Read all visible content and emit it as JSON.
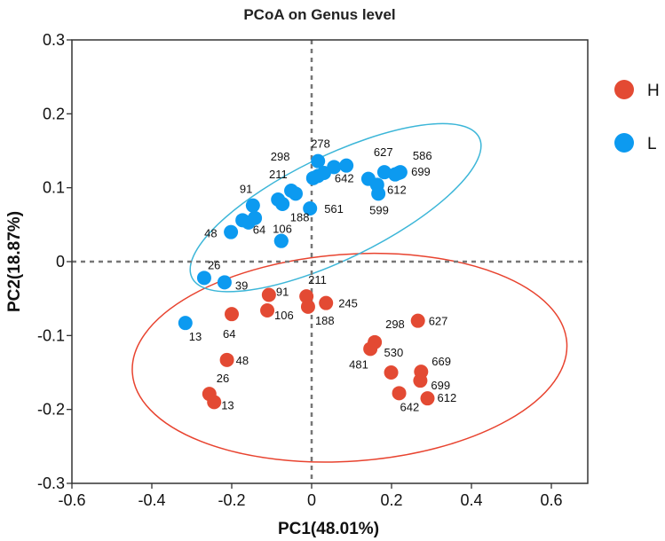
{
  "chart_data": {
    "type": "scatter",
    "title": "PCoA on Genus level",
    "xlabel": "PC1(48.01%)",
    "ylabel": "PC2(18.87%)",
    "xlim": [
      -0.6,
      0.69
    ],
    "ylim": [
      -0.3,
      0.3
    ],
    "xticks": [
      -0.6,
      -0.4,
      -0.2,
      0,
      0.2,
      0.4,
      0.6
    ],
    "xtick_labels": [
      "-0.6",
      "-0.4",
      "-0.2",
      "0",
      "0.2",
      "0.4",
      "0.6"
    ],
    "yticks": [
      0.3,
      0.2,
      0.1,
      0,
      -0.1,
      -0.2,
      -0.3
    ],
    "ytick_labels": [
      "0.3",
      "0.2",
      "0.1",
      "0",
      "-0.1",
      "-0.2",
      "-0.3"
    ],
    "reference_lines": {
      "x": 0,
      "y": 0,
      "style": "dashed"
    },
    "legend": {
      "placement": "right",
      "entries": [
        {
          "name": "H",
          "color": "#e34a33"
        },
        {
          "name": "L",
          "color": "#0c9af0"
        }
      ]
    },
    "series": [
      {
        "name": "H",
        "color": "#e34a33",
        "ellipse": {
          "cx": 0.095,
          "cy": -0.13,
          "rx": 0.545,
          "ry": 0.14,
          "angle_deg": -4,
          "stroke": "#e8432f"
        },
        "points": [
          {
            "label": "91",
            "x": -0.107,
            "y": -0.045,
            "lx": 8,
            "ly": 1
          },
          {
            "label": "106",
            "x": -0.111,
            "y": -0.066,
            "lx": 8,
            "ly": 10
          },
          {
            "label": "64",
            "x": -0.2,
            "y": -0.071,
            "lx": -10,
            "ly": 27
          },
          {
            "label": "211",
            "x": -0.013,
            "y": -0.047,
            "lx": 2,
            "ly": -14
          },
          {
            "label": "188",
            "x": -0.009,
            "y": -0.061,
            "lx": 8,
            "ly": 20
          },
          {
            "label": "245",
            "x": 0.036,
            "y": -0.056,
            "lx": 14,
            "ly": 5
          },
          {
            "label": "48",
            "x": -0.212,
            "y": -0.133,
            "lx": 10,
            "ly": 5
          },
          {
            "label": "26",
            "x": -0.256,
            "y": -0.179,
            "lx": 8,
            "ly": -13
          },
          {
            "label": "13",
            "x": -0.244,
            "y": -0.19,
            "lx": 8,
            "ly": 8
          },
          {
            "label": "627",
            "x": 0.266,
            "y": -0.08,
            "lx": 12,
            "ly": 5
          },
          {
            "label": "298",
            "x": 0.158,
            "y": -0.109,
            "lx": 12,
            "ly": -16
          },
          {
            "label": "481",
            "x": 0.147,
            "y": -0.118,
            "lx": -24,
            "ly": 22
          },
          {
            "label": "530",
            "x": 0.199,
            "y": -0.15,
            "lx": -8,
            "ly": -18
          },
          {
            "label": "669",
            "x": 0.274,
            "y": -0.149,
            "lx": 12,
            "ly": -7
          },
          {
            "label": "699",
            "x": 0.272,
            "y": -0.161,
            "lx": 12,
            "ly": 10
          },
          {
            "label": "642",
            "x": 0.219,
            "y": -0.178,
            "lx": 1,
            "ly": 20
          },
          {
            "label": "612",
            "x": 0.29,
            "y": -0.185,
            "lx": 11,
            "ly": 4
          }
        ]
      },
      {
        "name": "L",
        "color": "#0c9af0",
        "ellipse": {
          "cx": 0.06,
          "cy": 0.073,
          "rx": 0.4,
          "ry": 0.07,
          "angle_deg": -26,
          "stroke": "#3cb6d8"
        },
        "points": [
          {
            "label": "278",
            "x": 0.016,
            "y": 0.136,
            "lx": -8,
            "ly": -15
          },
          {
            "label": "",
            "x": 0.056,
            "y": 0.128,
            "lx": 0,
            "ly": 0
          },
          {
            "label": "",
            "x": 0.087,
            "y": 0.13,
            "lx": 0,
            "ly": 0
          },
          {
            "label": "",
            "x": 0.031,
            "y": 0.12,
            "lx": 0,
            "ly": 0
          },
          {
            "label": "",
            "x": 0.016,
            "y": 0.116,
            "lx": 0,
            "ly": 0
          },
          {
            "label": "298",
            "x": 0.004,
            "y": 0.113,
            "lx": -48,
            "ly": -20
          },
          {
            "label": "642",
            "x": 0.142,
            "y": 0.112,
            "lx": -38,
            "ly": 4
          },
          {
            "label": "",
            "x": 0.164,
            "y": 0.104,
            "lx": 0,
            "ly": 0
          },
          {
            "label": "599",
            "x": 0.167,
            "y": 0.092,
            "lx": -10,
            "ly": 23
          },
          {
            "label": "627",
            "x": 0.182,
            "y": 0.121,
            "lx": -12,
            "ly": -18
          },
          {
            "label": "612",
            "x": 0.209,
            "y": 0.118,
            "lx": -9,
            "ly": 22
          },
          {
            "label": "586",
            "x": 0.222,
            "y": 0.121,
            "lx": 14,
            "ly": -14
          },
          {
            "label": "699",
            "x": 0.218,
            "y": 0.12,
            "lx": 14,
            "ly": 3
          },
          {
            "label": "211",
            "x": -0.051,
            "y": 0.096,
            "lx": -25,
            "ly": -14
          },
          {
            "label": "",
            "x": -0.04,
            "y": 0.092,
            "lx": 0,
            "ly": 0
          },
          {
            "label": "",
            "x": -0.084,
            "y": 0.084,
            "lx": 0,
            "ly": 0
          },
          {
            "label": "",
            "x": -0.073,
            "y": 0.078,
            "lx": 0,
            "ly": 0
          },
          {
            "label": "561",
            "x": -0.004,
            "y": 0.072,
            "lx": 16,
            "ly": 5
          },
          {
            "label": "91",
            "x": -0.147,
            "y": 0.076,
            "lx": -15,
            "ly": -14
          },
          {
            "label": "106",
            "x": -0.173,
            "y": 0.056,
            "lx": 34,
            "ly": 14
          },
          {
            "label": "",
            "x": -0.158,
            "y": 0.053,
            "lx": 0,
            "ly": 0
          },
          {
            "label": "",
            "x": -0.142,
            "y": 0.059,
            "lx": 0,
            "ly": 0
          },
          {
            "label": "48",
            "x": -0.202,
            "y": 0.04,
            "lx": -30,
            "ly": 6
          },
          {
            "label": "64",
            "x": -0.076,
            "y": 0.028,
            "lx": -32,
            "ly": -8
          },
          {
            "label": "188",
            "x": -0.076,
            "y": 0.028,
            "lx": 10,
            "ly": -22
          },
          {
            "label": "26",
            "x": -0.269,
            "y": -0.022,
            "lx": 4,
            "ly": -10
          },
          {
            "label": "39",
            "x": -0.218,
            "y": -0.028,
            "lx": 12,
            "ly": 8
          },
          {
            "label": "13",
            "x": -0.316,
            "y": -0.083,
            "lx": 4,
            "ly": 20
          }
        ]
      }
    ]
  }
}
